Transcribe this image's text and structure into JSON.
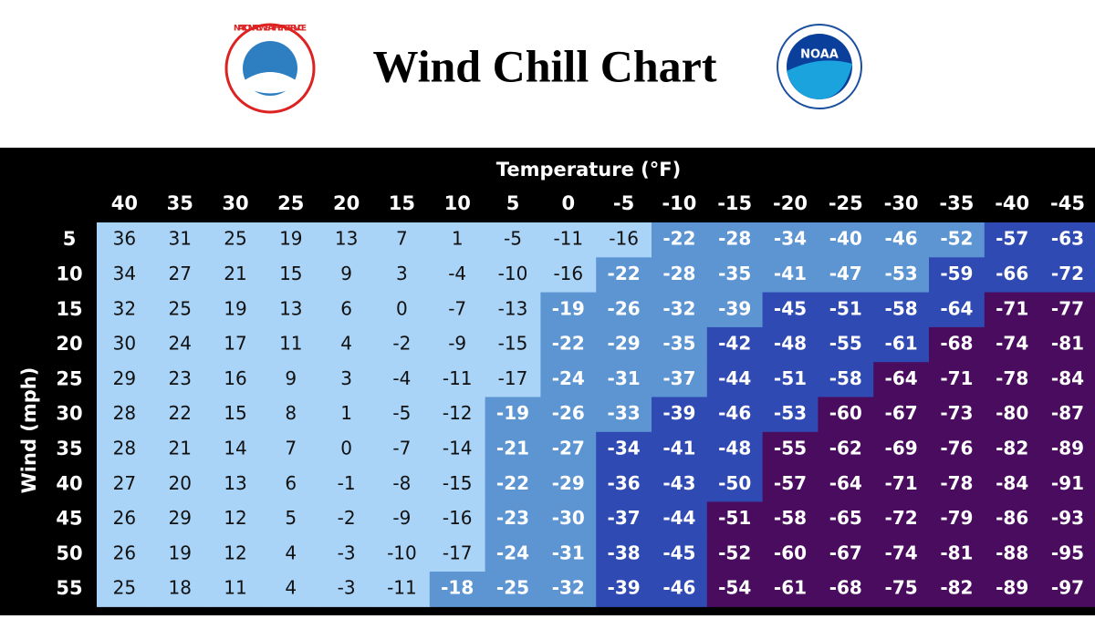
{
  "header": {
    "title": "Wind Chill Chart",
    "logo_left": "NATIONAL WEATHER SERVICE",
    "logo_right": "NOAA"
  },
  "table": {
    "column_header": "Temperature (°F)",
    "row_header": "Wind (mph)",
    "zone_colors": [
      "#a9d3f7",
      "#5d95d3",
      "#2f4ab3",
      "#4a0c5e"
    ],
    "zone_text_colors": [
      "#111111",
      "#ffffff",
      "#ffffff",
      "#ffffff"
    ],
    "columns": [
      40,
      35,
      30,
      25,
      20,
      15,
      10,
      5,
      0,
      -5,
      -10,
      -15,
      -20,
      -25,
      -30,
      -35,
      -40,
      -45
    ],
    "rows": [
      {
        "wind": 5,
        "values": [
          36,
          31,
          25,
          19,
          13,
          7,
          1,
          -5,
          -11,
          -16,
          -22,
          -28,
          -34,
          -40,
          -46,
          -52,
          -57,
          -63
        ],
        "zones": [
          0,
          0,
          0,
          0,
          0,
          0,
          0,
          0,
          0,
          0,
          1,
          1,
          1,
          1,
          1,
          1,
          2,
          2
        ]
      },
      {
        "wind": 10,
        "values": [
          34,
          27,
          21,
          15,
          9,
          3,
          -4,
          -10,
          -16,
          -22,
          -28,
          -35,
          -41,
          -47,
          -53,
          -59,
          -66,
          -72
        ],
        "zones": [
          0,
          0,
          0,
          0,
          0,
          0,
          0,
          0,
          0,
          1,
          1,
          1,
          1,
          1,
          1,
          2,
          2,
          2
        ]
      },
      {
        "wind": 15,
        "values": [
          32,
          25,
          19,
          13,
          6,
          0,
          -7,
          -13,
          -19,
          -26,
          -32,
          -39,
          -45,
          -51,
          -58,
          -64,
          -71,
          -77
        ],
        "zones": [
          0,
          0,
          0,
          0,
          0,
          0,
          0,
          0,
          1,
          1,
          1,
          1,
          2,
          2,
          2,
          2,
          3,
          3
        ]
      },
      {
        "wind": 20,
        "values": [
          30,
          24,
          17,
          11,
          4,
          -2,
          -9,
          -15,
          -22,
          -29,
          -35,
          -42,
          -48,
          -55,
          -61,
          -68,
          -74,
          -81
        ],
        "zones": [
          0,
          0,
          0,
          0,
          0,
          0,
          0,
          0,
          1,
          1,
          1,
          2,
          2,
          2,
          2,
          3,
          3,
          3
        ]
      },
      {
        "wind": 25,
        "values": [
          29,
          23,
          16,
          9,
          3,
          -4,
          -11,
          -17,
          -24,
          -31,
          -37,
          -44,
          -51,
          -58,
          -64,
          -71,
          -78,
          -84
        ],
        "zones": [
          0,
          0,
          0,
          0,
          0,
          0,
          0,
          0,
          1,
          1,
          1,
          2,
          2,
          2,
          3,
          3,
          3,
          3
        ]
      },
      {
        "wind": 30,
        "values": [
          28,
          22,
          15,
          8,
          1,
          -5,
          -12,
          -19,
          -26,
          -33,
          -39,
          -46,
          -53,
          -60,
          -67,
          -73,
          -80,
          -87
        ],
        "zones": [
          0,
          0,
          0,
          0,
          0,
          0,
          0,
          1,
          1,
          1,
          2,
          2,
          2,
          3,
          3,
          3,
          3,
          3
        ]
      },
      {
        "wind": 35,
        "values": [
          28,
          21,
          14,
          7,
          0,
          -7,
          -14,
          -21,
          -27,
          -34,
          -41,
          -48,
          -55,
          -62,
          -69,
          -76,
          -82,
          -89
        ],
        "zones": [
          0,
          0,
          0,
          0,
          0,
          0,
          0,
          1,
          1,
          2,
          2,
          2,
          3,
          3,
          3,
          3,
          3,
          3
        ]
      },
      {
        "wind": 40,
        "values": [
          27,
          20,
          13,
          6,
          -1,
          -8,
          -15,
          -22,
          -29,
          -36,
          -43,
          -50,
          -57,
          -64,
          -71,
          -78,
          -84,
          -91
        ],
        "zones": [
          0,
          0,
          0,
          0,
          0,
          0,
          0,
          1,
          1,
          2,
          2,
          2,
          3,
          3,
          3,
          3,
          3,
          3
        ]
      },
      {
        "wind": 45,
        "values": [
          26,
          29,
          12,
          5,
          -2,
          -9,
          -16,
          -23,
          -30,
          -37,
          -44,
          -51,
          -58,
          -65,
          -72,
          -79,
          -86,
          -93
        ],
        "zones": [
          0,
          0,
          0,
          0,
          0,
          0,
          0,
          1,
          1,
          2,
          2,
          3,
          3,
          3,
          3,
          3,
          3,
          3
        ]
      },
      {
        "wind": 50,
        "values": [
          26,
          19,
          12,
          4,
          -3,
          -10,
          -17,
          -24,
          -31,
          -38,
          -45,
          -52,
          -60,
          -67,
          -74,
          -81,
          -88,
          -95
        ],
        "zones": [
          0,
          0,
          0,
          0,
          0,
          0,
          0,
          1,
          1,
          2,
          2,
          3,
          3,
          3,
          3,
          3,
          3,
          3
        ]
      },
      {
        "wind": 55,
        "values": [
          25,
          18,
          11,
          4,
          -3,
          -11,
          -18,
          -25,
          -32,
          -39,
          -46,
          -54,
          -61,
          -68,
          -75,
          -82,
          -89,
          -97
        ],
        "zones": [
          0,
          0,
          0,
          0,
          0,
          0,
          1,
          1,
          1,
          2,
          2,
          3,
          3,
          3,
          3,
          3,
          3,
          3
        ]
      }
    ]
  }
}
